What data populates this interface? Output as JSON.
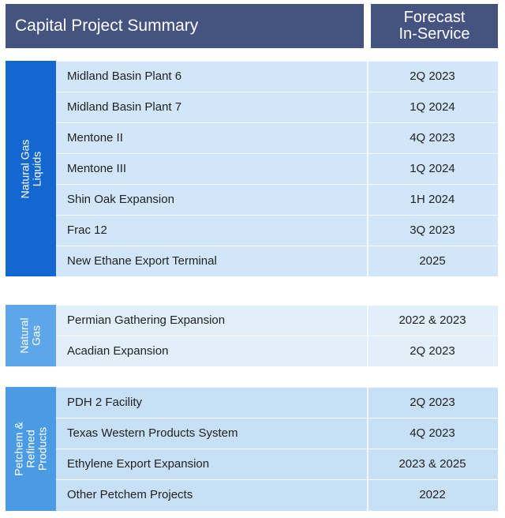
{
  "header": {
    "title": "Capital Project Summary",
    "forecast_line1": "Forecast",
    "forecast_line2": "In-Service"
  },
  "groups": [
    {
      "label_line1": "Natural Gas",
      "label_line2": "Liquids",
      "rows": [
        {
          "name": "Midland Basin Plant 6",
          "date": "2Q 2023"
        },
        {
          "name": "Midland Basin Plant 7",
          "date": "1Q 2024"
        },
        {
          "name": "Mentone II",
          "date": "4Q 2023"
        },
        {
          "name": "Mentone III",
          "date": "1Q 2024"
        },
        {
          "name": "Shin Oak Expansion",
          "date": "1H 2024"
        },
        {
          "name": "Frac 12",
          "date": "3Q 2023"
        },
        {
          "name": "New Ethane Export Terminal",
          "date": "2025"
        }
      ]
    },
    {
      "label_line1": "Natural",
      "label_line2": "Gas",
      "rows": [
        {
          "name": "Permian Gathering Expansion",
          "date": "2022 & 2023"
        },
        {
          "name": "Acadian Expansion",
          "date": "2Q 2023"
        }
      ]
    },
    {
      "label_line1": "Petchem &",
      "label_line2": "Refined",
      "label_line3": "Products",
      "rows": [
        {
          "name": "PDH 2 Facility",
          "date": "2Q 2023"
        },
        {
          "name": "Texas Western Products System",
          "date": "4Q 2023"
        },
        {
          "name": "Ethylene Export Expansion",
          "date": "2023 & 2025"
        },
        {
          "name": "Other Petchem Projects",
          "date": "2022"
        }
      ]
    }
  ]
}
